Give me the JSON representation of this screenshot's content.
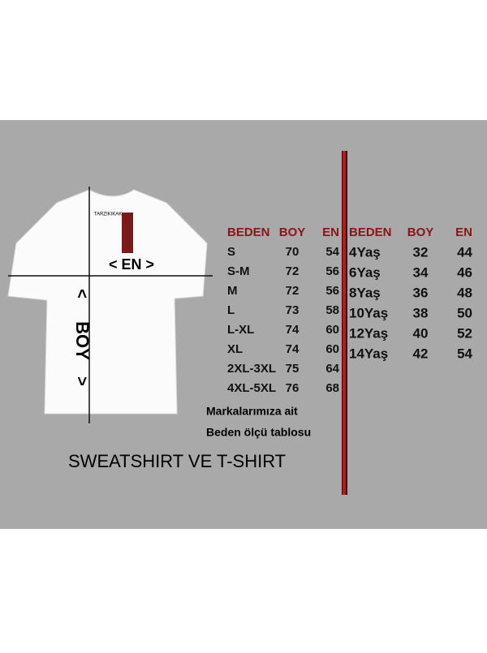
{
  "shirt": {
    "tag": "TARZIKIKAK",
    "width_label": "< EN >",
    "length_label": "BOY",
    "length_arrow_top": "<",
    "length_arrow_bottom": ">"
  },
  "adult_table": {
    "header": [
      "BEDEN",
      "BOY",
      "EN"
    ],
    "rows": [
      [
        "S",
        70,
        54
      ],
      [
        "S-M",
        72,
        56
      ],
      [
        "M",
        72,
        56
      ],
      [
        "L",
        73,
        58
      ],
      [
        "L-XL",
        74,
        60
      ],
      [
        "XL",
        74,
        60
      ],
      [
        "2XL-3XL",
        75,
        64
      ],
      [
        "4XL-5XL",
        76,
        68
      ]
    ]
  },
  "kids_table": {
    "header": [
      "BEDEN",
      "BOY",
      "EN"
    ],
    "rows": [
      [
        "4Yaş",
        32,
        44
      ],
      [
        "6Yaş",
        34,
        46
      ],
      [
        "8Yaş",
        36,
        48
      ],
      [
        "10Yaş",
        38,
        50
      ],
      [
        "12Yaş",
        40,
        52
      ],
      [
        "14Yaş",
        42,
        54
      ]
    ]
  },
  "note": [
    "Markalarımıza ait",
    "Beden ölçü tablosu"
  ],
  "caption": "SWEATSHIRT VE T-SHIRT"
}
